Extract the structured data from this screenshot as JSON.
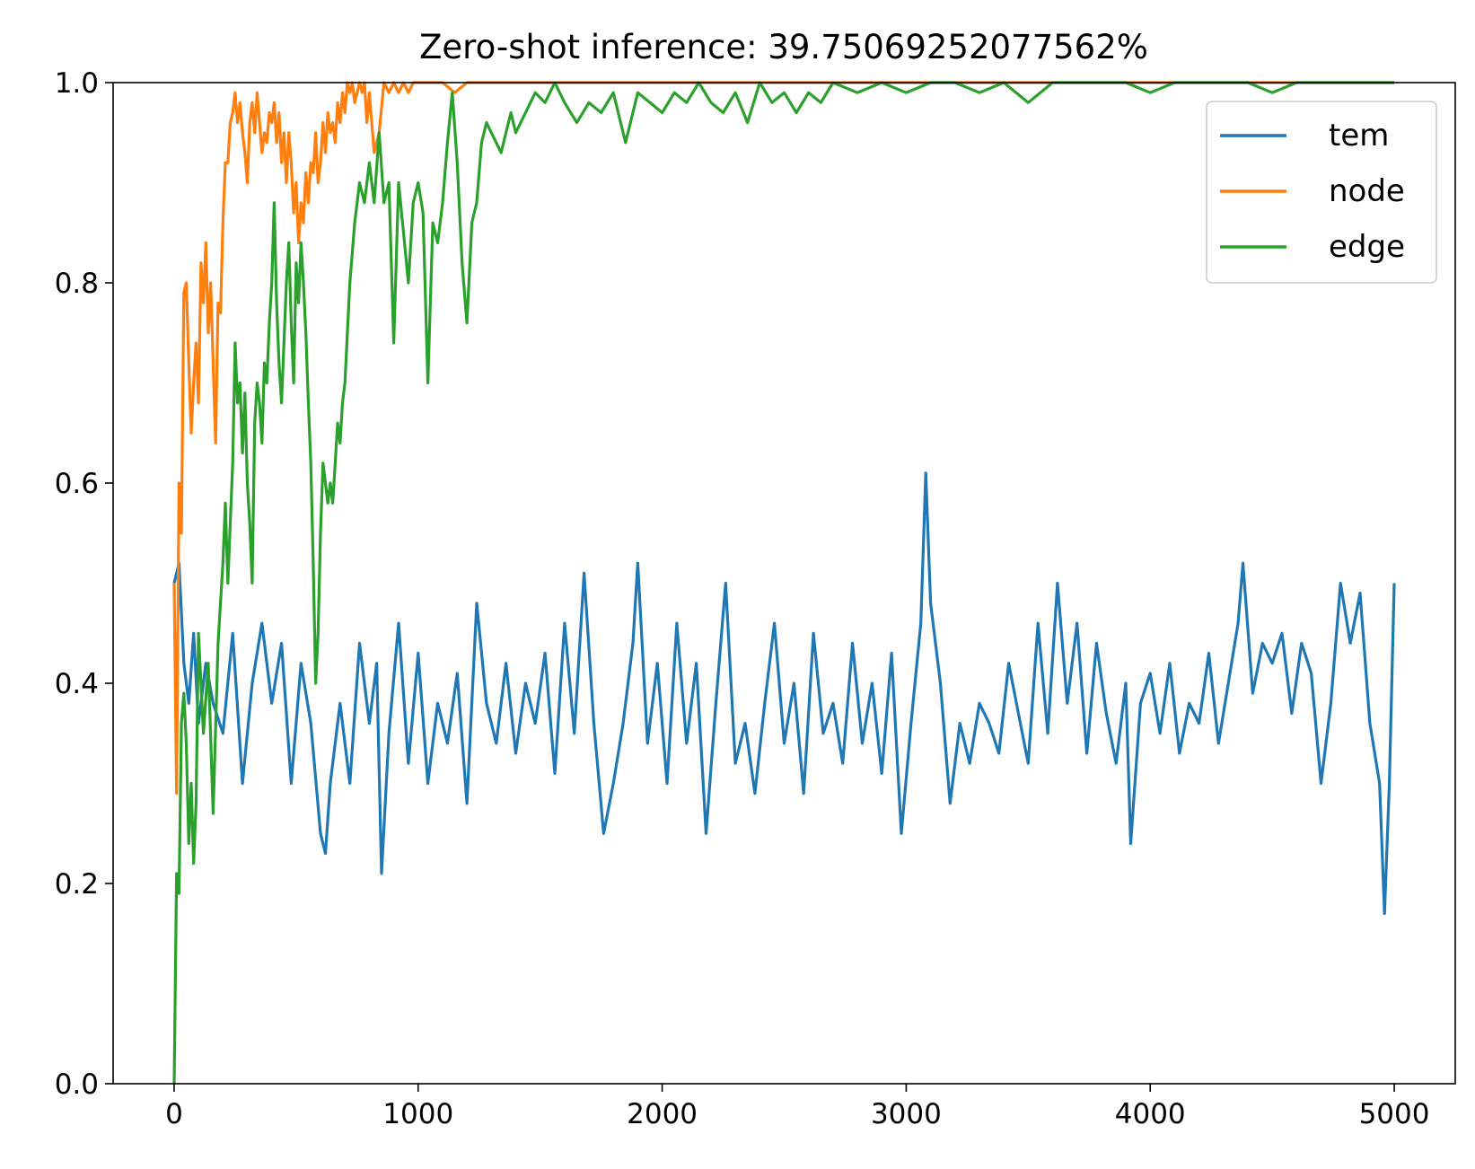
{
  "chart_data": {
    "type": "line",
    "title": "Zero-shot inference: 39.75069252077562%",
    "xlabel": "",
    "ylabel": "",
    "xlim": [
      -250,
      5250
    ],
    "ylim": [
      0,
      1
    ],
    "xticks": [
      0,
      1000,
      2000,
      3000,
      4000,
      5000
    ],
    "xtick_labels": [
      "0",
      "1000",
      "2000",
      "3000",
      "4000",
      "5000"
    ],
    "yticks": [
      0,
      0.2,
      0.4,
      0.6,
      0.8,
      1.0
    ],
    "ytick_labels": [
      "0.0",
      "0.2",
      "0.4",
      "0.6",
      "0.8",
      "1.0"
    ],
    "grid": false,
    "legend": "top-right",
    "series": [
      {
        "name": "tem",
        "color": "#1f77b4",
        "x": [
          0,
          20,
          40,
          60,
          80,
          100,
          130,
          160,
          200,
          240,
          280,
          320,
          360,
          400,
          440,
          480,
          520,
          560,
          600,
          620,
          640,
          680,
          720,
          760,
          800,
          830,
          850,
          880,
          920,
          960,
          1000,
          1040,
          1080,
          1120,
          1160,
          1200,
          1240,
          1280,
          1320,
          1360,
          1400,
          1440,
          1480,
          1520,
          1560,
          1600,
          1640,
          1680,
          1720,
          1760,
          1800,
          1840,
          1880,
          1900,
          1940,
          1980,
          2020,
          2060,
          2100,
          2140,
          2180,
          2220,
          2260,
          2300,
          2340,
          2380,
          2420,
          2460,
          2500,
          2540,
          2580,
          2620,
          2660,
          2700,
          2740,
          2780,
          2820,
          2860,
          2900,
          2940,
          2980,
          3020,
          3060,
          3080,
          3100,
          3140,
          3180,
          3220,
          3260,
          3300,
          3340,
          3380,
          3420,
          3460,
          3500,
          3540,
          3580,
          3620,
          3660,
          3700,
          3740,
          3780,
          3820,
          3860,
          3900,
          3920,
          3960,
          4000,
          4040,
          4080,
          4120,
          4160,
          4200,
          4240,
          4280,
          4320,
          4360,
          4380,
          4420,
          4460,
          4500,
          4540,
          4580,
          4620,
          4660,
          4700,
          4740,
          4780,
          4820,
          4860,
          4900,
          4940,
          4960,
          4980,
          5000
        ],
        "y": [
          0.5,
          0.52,
          0.42,
          0.38,
          0.45,
          0.36,
          0.42,
          0.38,
          0.35,
          0.45,
          0.3,
          0.4,
          0.46,
          0.38,
          0.44,
          0.3,
          0.42,
          0.36,
          0.25,
          0.23,
          0.3,
          0.38,
          0.3,
          0.44,
          0.36,
          0.42,
          0.21,
          0.35,
          0.46,
          0.32,
          0.43,
          0.3,
          0.38,
          0.34,
          0.41,
          0.28,
          0.48,
          0.38,
          0.34,
          0.42,
          0.33,
          0.4,
          0.36,
          0.43,
          0.31,
          0.46,
          0.35,
          0.51,
          0.36,
          0.25,
          0.3,
          0.36,
          0.44,
          0.52,
          0.34,
          0.42,
          0.3,
          0.46,
          0.34,
          0.42,
          0.25,
          0.38,
          0.5,
          0.32,
          0.36,
          0.29,
          0.38,
          0.46,
          0.34,
          0.4,
          0.29,
          0.45,
          0.35,
          0.38,
          0.32,
          0.44,
          0.34,
          0.4,
          0.31,
          0.43,
          0.25,
          0.36,
          0.46,
          0.61,
          0.48,
          0.4,
          0.28,
          0.36,
          0.32,
          0.38,
          0.36,
          0.33,
          0.42,
          0.37,
          0.32,
          0.46,
          0.35,
          0.5,
          0.38,
          0.46,
          0.33,
          0.44,
          0.37,
          0.32,
          0.4,
          0.24,
          0.38,
          0.41,
          0.35,
          0.42,
          0.33,
          0.38,
          0.36,
          0.43,
          0.34,
          0.4,
          0.46,
          0.52,
          0.39,
          0.44,
          0.42,
          0.45,
          0.37,
          0.44,
          0.41,
          0.3,
          0.38,
          0.5,
          0.44,
          0.49,
          0.36,
          0.3,
          0.17,
          0.3,
          0.5
        ]
      },
      {
        "name": "node",
        "color": "#ff7f0e",
        "x": [
          0,
          10,
          20,
          30,
          40,
          50,
          60,
          70,
          80,
          90,
          100,
          110,
          120,
          130,
          140,
          150,
          160,
          170,
          180,
          190,
          200,
          210,
          220,
          230,
          240,
          250,
          260,
          270,
          280,
          290,
          300,
          310,
          320,
          330,
          340,
          350,
          360,
          370,
          380,
          390,
          400,
          410,
          420,
          430,
          440,
          450,
          460,
          470,
          480,
          490,
          500,
          510,
          520,
          530,
          540,
          550,
          560,
          570,
          580,
          590,
          600,
          610,
          620,
          630,
          640,
          650,
          660,
          670,
          680,
          690,
          700,
          710,
          720,
          730,
          740,
          750,
          760,
          770,
          780,
          790,
          800,
          820,
          840,
          860,
          880,
          900,
          920,
          940,
          960,
          980,
          1000,
          1020,
          1040,
          1060,
          1080,
          1100,
          1150,
          1200,
          1300,
          1400,
          1500,
          1600,
          1700,
          1800,
          1900,
          2000,
          2100,
          2200,
          2300,
          2400,
          2500,
          2600,
          2700,
          2800,
          2900,
          3000,
          3200,
          3400,
          3600,
          3800,
          4000,
          4200,
          4400,
          4600,
          4800,
          5000
        ],
        "y": [
          0.5,
          0.29,
          0.6,
          0.55,
          0.79,
          0.8,
          0.72,
          0.65,
          0.7,
          0.74,
          0.68,
          0.82,
          0.78,
          0.84,
          0.75,
          0.8,
          0.72,
          0.64,
          0.78,
          0.77,
          0.86,
          0.92,
          0.92,
          0.96,
          0.97,
          0.99,
          0.96,
          0.98,
          0.95,
          0.93,
          0.9,
          0.96,
          0.98,
          0.95,
          0.99,
          0.96,
          0.93,
          0.95,
          0.94,
          0.97,
          0.96,
          0.98,
          0.94,
          0.97,
          0.92,
          0.95,
          0.9,
          0.95,
          0.92,
          0.87,
          0.9,
          0.84,
          0.88,
          0.86,
          0.91,
          0.88,
          0.92,
          0.91,
          0.95,
          0.9,
          0.92,
          0.96,
          0.93,
          0.97,
          0.95,
          0.96,
          0.94,
          0.98,
          0.96,
          0.99,
          0.97,
          1.0,
          0.99,
          1.0,
          0.98,
          0.99,
          1.0,
          0.99,
          1.0,
          0.96,
          0.99,
          0.93,
          0.95,
          1.0,
          0.99,
          1.0,
          0.99,
          1.0,
          0.99,
          1.0,
          1.0,
          1.0,
          1.0,
          1.0,
          1.0,
          1.0,
          0.99,
          1.0,
          1.0,
          1.0,
          1.0,
          1.0,
          1.0,
          1.0,
          1.0,
          1.0,
          1.0,
          1.0,
          1.0,
          1.0,
          1.0,
          1.0,
          1.0,
          1.0,
          1.0,
          1.0,
          1.0,
          1.0,
          1.0,
          1.0,
          1.0,
          1.0,
          1.0,
          1.0,
          1.0,
          1.0
        ]
      },
      {
        "name": "edge",
        "color": "#2ca02c",
        "x": [
          0,
          10,
          20,
          30,
          40,
          50,
          60,
          70,
          80,
          90,
          100,
          120,
          140,
          160,
          180,
          200,
          210,
          220,
          230,
          240,
          250,
          260,
          270,
          280,
          290,
          300,
          310,
          320,
          330,
          340,
          350,
          360,
          370,
          380,
          390,
          400,
          410,
          420,
          430,
          440,
          450,
          460,
          470,
          480,
          490,
          500,
          510,
          520,
          530,
          540,
          550,
          560,
          570,
          580,
          590,
          600,
          610,
          620,
          630,
          640,
          650,
          660,
          670,
          680,
          690,
          700,
          720,
          740,
          760,
          780,
          800,
          820,
          840,
          860,
          880,
          900,
          920,
          940,
          960,
          980,
          1000,
          1020,
          1040,
          1060,
          1080,
          1100,
          1120,
          1140,
          1160,
          1180,
          1200,
          1220,
          1240,
          1260,
          1280,
          1300,
          1320,
          1340,
          1360,
          1380,
          1400,
          1440,
          1480,
          1520,
          1560,
          1600,
          1650,
          1700,
          1750,
          1800,
          1850,
          1900,
          1950,
          2000,
          2050,
          2100,
          2150,
          2200,
          2250,
          2300,
          2350,
          2400,
          2450,
          2500,
          2550,
          2600,
          2650,
          2700,
          2800,
          2900,
          3000,
          3100,
          3200,
          3300,
          3400,
          3500,
          3600,
          3700,
          3800,
          3900,
          4000,
          4100,
          4200,
          4300,
          4400,
          4500,
          4600,
          4700,
          4800,
          4900,
          5000
        ],
        "y": [
          0.0,
          0.21,
          0.19,
          0.36,
          0.39,
          0.34,
          0.24,
          0.3,
          0.22,
          0.28,
          0.45,
          0.35,
          0.42,
          0.27,
          0.44,
          0.52,
          0.58,
          0.5,
          0.56,
          0.62,
          0.74,
          0.68,
          0.7,
          0.63,
          0.69,
          0.6,
          0.56,
          0.5,
          0.66,
          0.7,
          0.68,
          0.64,
          0.72,
          0.7,
          0.76,
          0.8,
          0.88,
          0.78,
          0.72,
          0.68,
          0.74,
          0.8,
          0.84,
          0.76,
          0.7,
          0.82,
          0.78,
          0.84,
          0.8,
          0.75,
          0.68,
          0.62,
          0.52,
          0.4,
          0.45,
          0.55,
          0.62,
          0.6,
          0.58,
          0.6,
          0.58,
          0.62,
          0.66,
          0.64,
          0.68,
          0.7,
          0.8,
          0.86,
          0.9,
          0.88,
          0.92,
          0.88,
          0.95,
          0.88,
          0.9,
          0.74,
          0.9,
          0.85,
          0.8,
          0.88,
          0.9,
          0.87,
          0.7,
          0.86,
          0.84,
          0.88,
          0.94,
          0.99,
          0.92,
          0.82,
          0.76,
          0.86,
          0.88,
          0.94,
          0.96,
          0.95,
          0.94,
          0.93,
          0.95,
          0.97,
          0.95,
          0.97,
          0.99,
          0.98,
          1.0,
          0.98,
          0.96,
          0.98,
          0.97,
          0.99,
          0.94,
          0.99,
          0.98,
          0.97,
          0.99,
          0.98,
          1.0,
          0.98,
          0.97,
          0.99,
          0.96,
          1.0,
          0.98,
          0.99,
          0.97,
          0.99,
          0.98,
          1.0,
          0.99,
          1.0,
          0.99,
          1.0,
          1.0,
          0.99,
          1.0,
          0.98,
          1.0,
          1.0,
          1.0,
          1.0,
          0.99,
          1.0,
          1.0,
          1.0,
          1.0,
          0.99,
          1.0,
          1.0,
          1.0,
          1.0,
          1.0
        ]
      }
    ]
  }
}
